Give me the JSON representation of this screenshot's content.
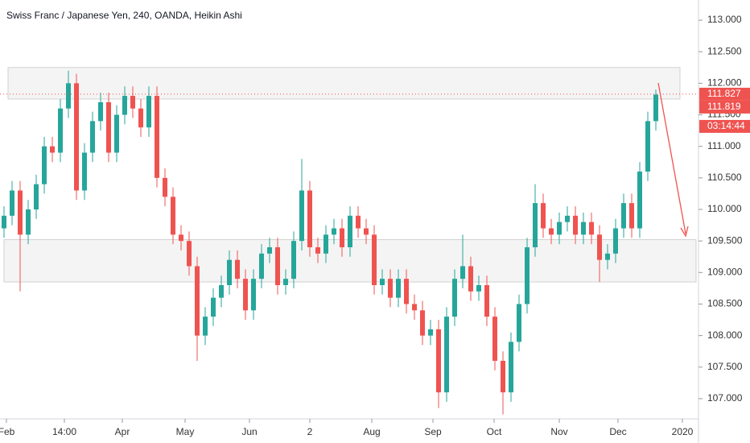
{
  "chart_data": {
    "type": "candlestick",
    "title": "Swiss Franc / Japanese Yen, 240, OANDA, Heikin Ashi",
    "up_color": "#26a69a",
    "down_color": "#ef5350",
    "xlim": [
      -0.5,
      86.3
    ],
    "ylim": [
      106.68,
      113.32
    ],
    "xticks": [
      {
        "value": 0.3,
        "label": "Feb"
      },
      {
        "value": 7.5,
        "label": "14:00"
      },
      {
        "value": 14.7,
        "label": "Apr"
      },
      {
        "value": 22.5,
        "label": "May"
      },
      {
        "value": 30.5,
        "label": "Jun"
      },
      {
        "value": 38,
        "label": "2"
      },
      {
        "value": 45.7,
        "label": "Aug"
      },
      {
        "value": 53.3,
        "label": "Sep"
      },
      {
        "value": 60.9,
        "label": "Oct"
      },
      {
        "value": 69,
        "label": "Nov"
      },
      {
        "value": 76.3,
        "label": "Dec"
      },
      {
        "value": 84.3,
        "label": "2020"
      }
    ],
    "yticks": [
      {
        "value": 107,
        "label": "107.000"
      },
      {
        "value": 107.5,
        "label": "107.500"
      },
      {
        "value": 108,
        "label": "108.000"
      },
      {
        "value": 108.5,
        "label": "108.500"
      },
      {
        "value": 109,
        "label": "109.000"
      },
      {
        "value": 109.5,
        "label": "109.500"
      },
      {
        "value": 110,
        "label": "110.000"
      },
      {
        "value": 110.5,
        "label": "110.500"
      },
      {
        "value": 111,
        "label": "111.000"
      },
      {
        "value": 111.5,
        "label": "111.500"
      },
      {
        "value": 112,
        "label": "112.000"
      },
      {
        "value": 112.5,
        "label": "112.500"
      },
      {
        "value": 113,
        "label": "113.000"
      }
    ],
    "zones": [
      {
        "low": 111.75,
        "high": 112.25,
        "start": 0.5,
        "end": 84
      },
      {
        "low": 108.85,
        "high": 109.52,
        "start": 0,
        "end": 86
      }
    ],
    "last_price": 111.827,
    "bid_price": 111.819,
    "countdown": "03:14:44",
    "open": [
      109.7,
      109.9,
      110.3,
      109.6,
      110.0,
      110.4,
      111.0,
      110.9,
      111.6,
      112.0,
      110.3,
      110.9,
      111.4,
      111.7,
      110.9,
      111.5,
      111.8,
      111.6,
      111.3,
      111.8,
      110.5,
      110.2,
      109.6,
      109.5,
      109.1,
      108.0,
      108.3,
      108.6,
      108.8,
      109.2,
      108.9,
      108.4,
      108.9,
      109.3,
      109.4,
      108.8,
      108.9,
      109.5,
      110.3,
      109.4,
      109.3,
      109.6,
      109.7,
      109.4,
      109.9,
      109.7,
      109.6,
      108.8,
      108.9,
      108.6,
      108.9,
      108.5,
      108.4,
      108.0,
      108.1,
      107.1,
      108.3,
      108.9,
      109.1,
      108.7,
      108.8,
      108.3,
      107.6,
      107.1,
      107.9,
      108.5,
      109.4,
      110.1,
      109.7,
      109.6,
      109.8,
      109.9,
      109.6,
      109.8,
      109.6,
      109.2,
      109.3,
      109.7,
      110.1,
      109.7,
      110.6,
      111.4
    ],
    "high": [
      110.05,
      110.45,
      110.45,
      110.15,
      110.55,
      111.15,
      111.15,
      111.75,
      112.2,
      112.15,
      111.05,
      111.55,
      111.85,
      111.85,
      111.65,
      111.95,
      111.95,
      111.75,
      111.95,
      111.95,
      110.65,
      110.35,
      109.75,
      109.65,
      109.25,
      108.45,
      108.75,
      108.95,
      109.35,
      109.35,
      109.05,
      109.05,
      109.45,
      109.55,
      109.55,
      109.05,
      109.65,
      110.8,
      110.45,
      109.55,
      109.75,
      109.85,
      109.85,
      110.05,
      110.05,
      109.85,
      109.75,
      109.05,
      109.05,
      109.05,
      109.05,
      108.65,
      108.55,
      108.25,
      108.25,
      108.45,
      109.05,
      109.6,
      109.25,
      108.95,
      108.95,
      108.45,
      107.75,
      108.05,
      108.65,
      109.55,
      110.4,
      110.25,
      109.85,
      109.95,
      110.05,
      110.05,
      109.95,
      109.95,
      109.75,
      109.45,
      109.85,
      110.25,
      110.25,
      110.75,
      111.55,
      111.9
    ],
    "low": [
      109.55,
      109.75,
      108.7,
      109.45,
      109.85,
      110.25,
      110.75,
      110.75,
      111.45,
      110.15,
      110.15,
      110.75,
      111.25,
      110.75,
      110.75,
      111.35,
      111.45,
      111.15,
      111.15,
      110.35,
      110.05,
      109.45,
      109.35,
      108.95,
      107.6,
      107.85,
      108.15,
      108.45,
      108.65,
      108.75,
      108.25,
      108.25,
      108.75,
      109.15,
      108.65,
      108.65,
      108.75,
      109.35,
      109.25,
      109.15,
      109.15,
      109.45,
      109.25,
      109.25,
      109.55,
      109.45,
      108.65,
      108.65,
      108.45,
      108.45,
      108.35,
      108.25,
      107.85,
      107.85,
      106.85,
      106.95,
      108.15,
      108.75,
      108.55,
      108.55,
      108.15,
      107.45,
      106.75,
      106.95,
      107.75,
      108.35,
      109.25,
      109.55,
      109.45,
      109.45,
      109.65,
      109.45,
      109.45,
      109.45,
      108.85,
      109.05,
      109.15,
      109.55,
      109.55,
      109.55,
      110.45,
      111.25
    ],
    "close": [
      109.9,
      110.3,
      109.6,
      110.0,
      110.4,
      111.0,
      110.9,
      111.6,
      112.0,
      110.3,
      110.9,
      111.4,
      111.7,
      110.9,
      111.5,
      111.8,
      111.6,
      111.3,
      111.8,
      110.5,
      110.2,
      109.6,
      109.5,
      109.1,
      108.0,
      108.3,
      108.6,
      108.8,
      109.2,
      108.9,
      108.4,
      108.9,
      109.3,
      109.4,
      108.8,
      108.9,
      109.5,
      110.3,
      109.4,
      109.3,
      109.6,
      109.7,
      109.4,
      109.9,
      109.7,
      109.6,
      108.8,
      108.9,
      108.6,
      108.9,
      108.5,
      108.4,
      108.0,
      108.1,
      107.1,
      108.3,
      108.9,
      109.1,
      108.7,
      108.8,
      108.3,
      107.6,
      107.1,
      107.9,
      108.5,
      109.4,
      110.1,
      109.7,
      109.6,
      109.8,
      109.9,
      109.6,
      109.8,
      109.6,
      109.2,
      109.3,
      109.7,
      110.1,
      109.7,
      110.6,
      111.4,
      111.82
    ]
  }
}
